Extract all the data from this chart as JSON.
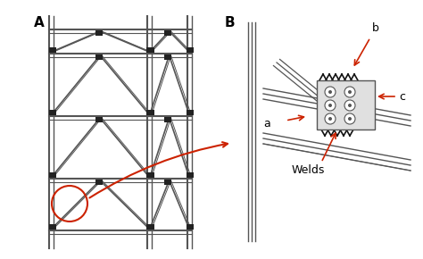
{
  "fig_width": 4.74,
  "fig_height": 2.9,
  "dpi": 100,
  "bg_color": "#ffffff",
  "label_A": "A",
  "label_B": "B",
  "label_a": "a",
  "label_b": "b",
  "label_c": "c",
  "label_welds": "Welds",
  "line_color": "#333333",
  "red_color": "#cc2200",
  "frame_color": "#555555",
  "light_gray": "#aaaaaa",
  "mid_gray": "#888888"
}
